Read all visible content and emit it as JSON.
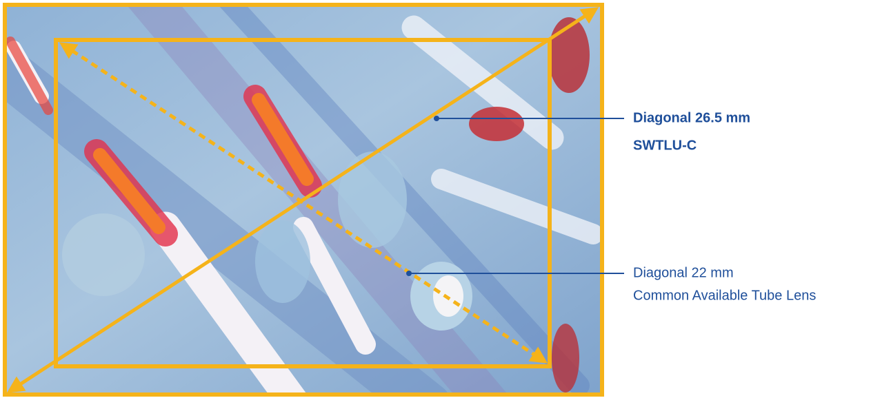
{
  "labels": [
    {
      "title": "Diagonal 26.5 mm",
      "subtitle": "SWTLU-C"
    },
    {
      "title": "Diagonal 22 mm",
      "subtitle": "Common Available Tube Lens"
    }
  ]
}
